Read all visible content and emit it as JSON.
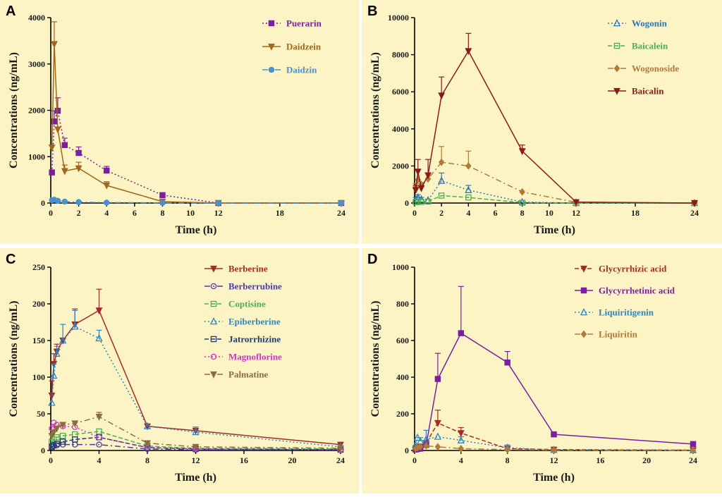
{
  "panel_bg": "#fcf4c4",
  "chart_data": [
    {
      "id": "A",
      "type": "line",
      "panel_label": "A",
      "xlabel": "Time (h)",
      "ylabel": "Concentrations (ng/mL)",
      "ylim": [
        0,
        4000
      ],
      "yticks": [
        0,
        1000,
        2000,
        3000,
        4000
      ],
      "xticks": [
        0,
        2,
        4,
        6,
        8,
        10,
        12,
        18,
        24
      ],
      "series": [
        {
          "name": "Puerarin",
          "color": "#7b1fa2",
          "marker": "square",
          "dash": "2,3",
          "x": [
            0.083,
            0.25,
            0.5,
            1,
            2,
            4,
            8,
            12,
            24
          ],
          "y": [
            660,
            1760,
            1990,
            1250,
            1080,
            700,
            170,
            0,
            0
          ],
          "err": [
            0,
            230,
            280,
            150,
            130,
            90,
            0,
            0,
            0
          ]
        },
        {
          "name": "Daidzein",
          "color": "#a0661c",
          "marker": "tri-down",
          "dash": "",
          "x": [
            0.083,
            0.25,
            0.5,
            1,
            2,
            4,
            8,
            12,
            24
          ],
          "y": [
            1200,
            3430,
            1590,
            690,
            750,
            380,
            30,
            0,
            0
          ],
          "err": [
            0,
            480,
            0,
            130,
            130,
            80,
            0,
            0,
            0
          ]
        },
        {
          "name": "Daidzin",
          "color": "#4a90d0",
          "marker": "circle",
          "dash": "8,4,2,4",
          "x": [
            0.083,
            0.25,
            0.5,
            1,
            2,
            4,
            8,
            12,
            24
          ],
          "y": [
            60,
            70,
            50,
            30,
            20,
            10,
            5,
            0,
            0
          ],
          "err": [
            15,
            20,
            15,
            10,
            5,
            0,
            0,
            0,
            0
          ]
        }
      ]
    },
    {
      "id": "B",
      "type": "line",
      "panel_label": "B",
      "xlabel": "Time (h)",
      "ylabel": "Concentrations (ng/mL)",
      "ylim": [
        0,
        10000
      ],
      "yticks": [
        0,
        2000,
        4000,
        6000,
        8000,
        10000
      ],
      "xticks": [
        0,
        2,
        4,
        6,
        8,
        10,
        12,
        18,
        24
      ],
      "series": [
        {
          "name": "Wogonin",
          "color": "#2e75b6",
          "marker": "triangle",
          "dash": "2,3",
          "x": [
            0.083,
            0.25,
            0.5,
            1,
            2,
            4,
            8,
            12,
            24
          ],
          "y": [
            200,
            300,
            200,
            150,
            1200,
            700,
            50,
            0,
            0
          ],
          "err": [
            100,
            150,
            100,
            0,
            420,
            250,
            0,
            0,
            0
          ]
        },
        {
          "name": "Baicalein",
          "color": "#4caf50",
          "marker": "square-open",
          "dash": "6,3",
          "x": [
            0.083,
            0.25,
            0.5,
            1,
            2,
            4,
            8,
            12,
            24
          ],
          "y": [
            50,
            80,
            60,
            80,
            400,
            300,
            20,
            0,
            0
          ],
          "err": [
            0,
            0,
            0,
            0,
            0,
            0,
            0,
            0,
            0
          ]
        },
        {
          "name": "Wogonoside",
          "color": "#b0793a",
          "marker": "diamond",
          "dash": "8,4,2,4",
          "x": [
            0.083,
            0.25,
            0.5,
            1,
            2,
            4,
            8,
            12,
            24
          ],
          "y": [
            850,
            1250,
            1000,
            1300,
            2200,
            2000,
            600,
            40,
            0
          ],
          "err": [
            200,
            0,
            0,
            0,
            850,
            800,
            0,
            0,
            0
          ]
        },
        {
          "name": "Baicalin",
          "color": "#8b1a1a",
          "marker": "tri-down",
          "dash": "",
          "x": [
            0.083,
            0.25,
            0.5,
            1,
            2,
            4,
            8,
            12,
            24
          ],
          "y": [
            700,
            1700,
            800,
            1500,
            5800,
            8200,
            2800,
            50,
            0
          ],
          "err": [
            250,
            650,
            0,
            850,
            1000,
            950,
            330,
            0,
            0
          ]
        }
      ]
    },
    {
      "id": "C",
      "type": "line",
      "panel_label": "C",
      "xlabel": "Time (h)",
      "ylabel": "Concentrations (ng/mL)",
      "ylim": [
        0,
        250
      ],
      "yticks": [
        0,
        50,
        100,
        150,
        200,
        250
      ],
      "xticks": [
        0,
        4,
        8,
        12,
        16,
        20,
        24
      ],
      "xlim": [
        0,
        24
      ],
      "series": [
        {
          "name": "Berberine",
          "color": "#a52a2a",
          "marker": "tri-down",
          "dash": "",
          "x": [
            0.083,
            0.25,
            0.5,
            1,
            2,
            4,
            8,
            12,
            24
          ],
          "y": [
            75,
            118,
            135,
            150,
            172,
            191,
            33,
            27,
            8
          ],
          "err": [
            20,
            14,
            10,
            0,
            21,
            29,
            0,
            0,
            0
          ]
        },
        {
          "name": "Berberrubine",
          "color": "#4a3ab0",
          "marker": "circle-open",
          "dash": "8,4,2,4",
          "x": [
            0.083,
            0.25,
            0.5,
            1,
            2,
            4,
            8,
            12,
            24
          ],
          "y": [
            5,
            6,
            7,
            8,
            8,
            8,
            2,
            1,
            1
          ],
          "err": [
            0,
            0,
            0,
            0,
            0,
            0,
            0,
            0,
            0
          ]
        },
        {
          "name": "Coptisine",
          "color": "#4caf50",
          "marker": "square-open",
          "dash": "6,3",
          "x": [
            0.083,
            0.25,
            0.5,
            1,
            2,
            4,
            8,
            12,
            24
          ],
          "y": [
            12,
            15,
            18,
            20,
            22,
            26,
            6,
            3,
            2
          ],
          "err": [
            0,
            0,
            0,
            0,
            0,
            0,
            0,
            0,
            0
          ]
        },
        {
          "name": "Epiberberine",
          "color": "#2e86c1",
          "marker": "triangle",
          "dash": "2,3",
          "x": [
            0.083,
            0.25,
            0.5,
            1,
            2,
            4,
            8,
            12,
            24
          ],
          "y": [
            65,
            102,
            132,
            150,
            169,
            153,
            33,
            25,
            5
          ],
          "err": [
            0,
            16,
            10,
            22,
            22,
            11,
            0,
            7,
            0
          ]
        },
        {
          "name": "Jatrorrhizine",
          "color": "#1f3a6e",
          "marker": "square-open",
          "dash": "6,3",
          "x": [
            0.083,
            0.25,
            0.5,
            1,
            2,
            4,
            8,
            12,
            24
          ],
          "y": [
            5,
            7,
            9,
            12,
            15,
            18,
            4,
            2,
            1
          ],
          "err": [
            0,
            0,
            0,
            0,
            0,
            0,
            0,
            0,
            0
          ]
        },
        {
          "name": "Magnoflorine",
          "color": "#cc33cc",
          "marker": "circle-open",
          "dash": "2,3",
          "x": [
            0.083,
            0.25,
            0.5,
            1,
            2,
            4,
            8,
            12,
            24
          ],
          "y": [
            30,
            38,
            35,
            33,
            32,
            18,
            4,
            2,
            1
          ],
          "err": [
            0,
            0,
            0,
            0,
            0,
            0,
            0,
            0,
            0
          ]
        },
        {
          "name": "Palmatine",
          "color": "#8b6d3a",
          "marker": "tri-down",
          "dash": "8,4,2,4",
          "x": [
            0.083,
            0.25,
            0.5,
            1,
            2,
            4,
            8,
            12,
            24
          ],
          "y": [
            20,
            25,
            30,
            35,
            37,
            46,
            10,
            5,
            3
          ],
          "err": [
            0,
            0,
            0,
            0,
            0,
            6,
            0,
            0,
            0
          ]
        }
      ]
    },
    {
      "id": "D",
      "type": "line",
      "panel_label": "D",
      "xlabel": "Time (h)",
      "ylabel": "Concentrations (ng/mL)",
      "ylim": [
        0,
        1000
      ],
      "yticks": [
        0,
        200,
        400,
        600,
        800,
        1000
      ],
      "xticks": [
        0,
        4,
        8,
        12,
        16,
        20,
        24
      ],
      "xlim": [
        0,
        24
      ],
      "series": [
        {
          "name": "Glycyrrhizic acid",
          "color": "#a52a2a",
          "marker": "tri-down",
          "dash": "6,3",
          "x": [
            0.083,
            0.25,
            0.5,
            1,
            2,
            4,
            8,
            12,
            24
          ],
          "y": [
            10,
            15,
            20,
            40,
            150,
            95,
            10,
            5,
            2
          ],
          "err": [
            0,
            0,
            0,
            0,
            70,
            30,
            0,
            0,
            0
          ]
        },
        {
          "name": "Glycyrrhetinic acid",
          "color": "#7b1fa2",
          "marker": "square",
          "dash": "",
          "x": [
            0.083,
            0.25,
            0.5,
            1,
            2,
            4,
            8,
            12,
            24
          ],
          "y": [
            5,
            8,
            10,
            30,
            390,
            640,
            480,
            88,
            35
          ],
          "err": [
            0,
            0,
            0,
            0,
            140,
            255,
            60,
            0,
            0
          ]
        },
        {
          "name": "Liquiritigenin",
          "color": "#2e86c1",
          "marker": "triangle",
          "dash": "2,3",
          "x": [
            0.083,
            0.25,
            0.5,
            1,
            2,
            4,
            8,
            12,
            24
          ],
          "y": [
            30,
            70,
            50,
            60,
            75,
            55,
            15,
            3,
            2
          ],
          "err": [
            0,
            0,
            20,
            50,
            0,
            20,
            15,
            0,
            0
          ]
        },
        {
          "name": "Liquiritin",
          "color": "#b0793a",
          "marker": "diamond",
          "dash": "8,4,2,4",
          "x": [
            0.083,
            0.25,
            0.5,
            1,
            2,
            4,
            8,
            12,
            24
          ],
          "y": [
            10,
            15,
            20,
            25,
            20,
            10,
            5,
            2,
            1
          ],
          "err": [
            0,
            0,
            0,
            0,
            0,
            0,
            0,
            0,
            0
          ]
        }
      ]
    }
  ]
}
